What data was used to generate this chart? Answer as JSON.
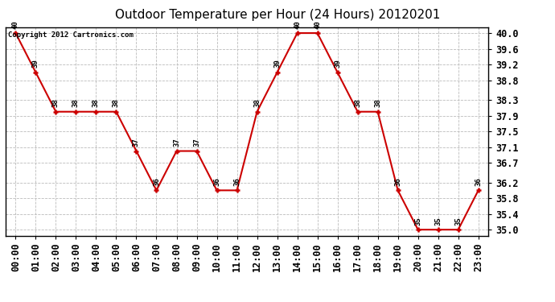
{
  "title": "Outdoor Temperature per Hour (24 Hours) 20120201",
  "copyright": "Copyright 2012 Cartronics.com",
  "hours": [
    "00:00",
    "01:00",
    "02:00",
    "03:00",
    "04:00",
    "05:00",
    "06:00",
    "07:00",
    "08:00",
    "09:00",
    "10:00",
    "11:00",
    "12:00",
    "13:00",
    "14:00",
    "15:00",
    "16:00",
    "17:00",
    "18:00",
    "19:00",
    "20:00",
    "21:00",
    "22:00",
    "23:00"
  ],
  "values": [
    40,
    39,
    38,
    38,
    38,
    38,
    37,
    36,
    37,
    37,
    36,
    36,
    38,
    39,
    40,
    40,
    39,
    38,
    38,
    36,
    35,
    35,
    35,
    36
  ],
  "line_color": "#cc0000",
  "marker_color": "#cc0000",
  "bg_color": "#ffffff",
  "grid_color": "#bbbbbb",
  "ylim_min": 34.85,
  "ylim_max": 40.15,
  "yticks": [
    35.0,
    35.4,
    35.8,
    36.2,
    36.7,
    37.1,
    37.5,
    37.9,
    38.3,
    38.8,
    39.2,
    39.6,
    40.0
  ],
  "title_fontsize": 11,
  "copyright_fontsize": 6.5,
  "label_fontsize": 6.5,
  "tick_fontsize": 8.5
}
